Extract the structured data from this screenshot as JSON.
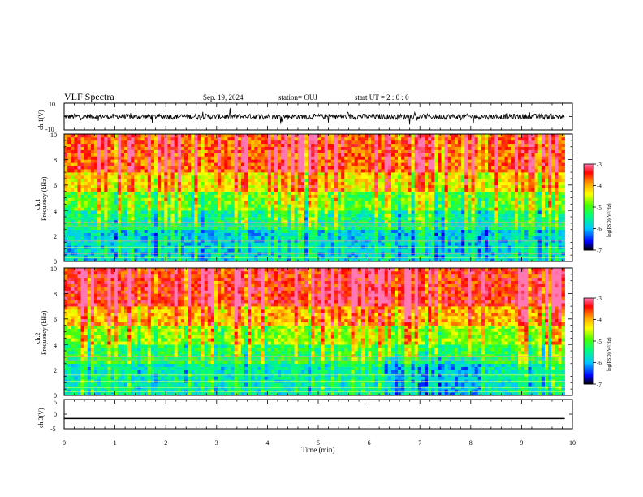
{
  "header": {
    "title": "VLF Spectra",
    "date": "Sep. 19, 2024",
    "station": "station= OUJ",
    "start_ut": "start UT =  2 : 0  : 0"
  },
  "chart_data": [
    {
      "type": "line",
      "name": "ch1-waveform",
      "ylabel": "ch.1(V)",
      "ylim": [
        -10,
        10
      ],
      "yticks": [
        "10",
        "-10"
      ],
      "baseline": 0,
      "noise_amplitude": 2,
      "xlim": [
        0,
        10
      ],
      "data_end_min": 9.85
    },
    {
      "type": "heatmap",
      "name": "ch1-spectrogram",
      "ylabel_top": "ch.1",
      "ylabel": "Frequency (kHz)",
      "ylim": [
        0,
        10
      ],
      "yticks": [
        "0",
        "2",
        "4",
        "6",
        "8",
        "10"
      ],
      "xlim": [
        0,
        10
      ],
      "data_end_min": 9.85,
      "colorbar": {
        "label": "log(PSD)(V²/Hz)",
        "range": [
          -7,
          -3
        ],
        "ticks": [
          "-3",
          "-4",
          "-5",
          "-6",
          "-7"
        ],
        "colors": [
          "#ff66aa",
          "#ff0000",
          "#ffa500",
          "#ffff00",
          "#00ff00",
          "#00ffff",
          "#0000ff",
          "#000000"
        ]
      }
    },
    {
      "type": "heatmap",
      "name": "ch2-spectrogram",
      "ylabel_top": "ch.2",
      "ylabel": "Frequency (kHz)",
      "ylim": [
        0,
        10
      ],
      "yticks": [
        "0",
        "2",
        "4",
        "6",
        "8",
        "10"
      ],
      "xlim": [
        0,
        10
      ],
      "data_end_min": 9.85,
      "colorbar": {
        "label": "log(PSD)(V²/Hz)",
        "range": [
          -7,
          -3
        ],
        "ticks": [
          "-3",
          "-4",
          "-5",
          "-6",
          "-7"
        ],
        "colors": [
          "#ff66aa",
          "#ff0000",
          "#ffa500",
          "#ffff00",
          "#00ff00",
          "#00ffff",
          "#0000ff",
          "#000000"
        ]
      }
    },
    {
      "type": "line",
      "name": "ch3-waveform",
      "ylabel": "ch.3(V)",
      "ylim": [
        -5,
        5
      ],
      "yticks": [
        "5",
        "0",
        "-5"
      ],
      "baseline": -1.5,
      "noise_amplitude": 0,
      "xlim": [
        0,
        10
      ],
      "xlabel": "Time (min)",
      "xticks": [
        "0",
        "1",
        "2",
        "3",
        "4",
        "5",
        "6",
        "7",
        "8",
        "9",
        "10"
      ],
      "data_end_min": 9.85
    }
  ]
}
